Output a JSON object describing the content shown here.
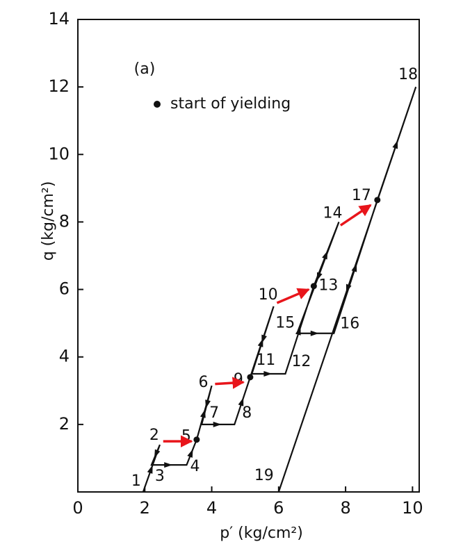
{
  "chart_data": {
    "type": "line",
    "annotation": "(a)",
    "xlabel": "p′ (kg/cm²)",
    "ylabel": "q (kg/cm²)",
    "xlim": [
      0,
      10.2
    ],
    "ylim": [
      0,
      14
    ],
    "xticks": [
      0,
      2,
      4,
      6,
      8,
      10
    ],
    "yticks": [
      2,
      4,
      6,
      8,
      10,
      12,
      14
    ],
    "legend": "upper left",
    "series": [
      {
        "color": "#111111",
        "x": [
          1.95,
          2.45,
          2.2,
          3.25,
          3.55,
          4.0,
          3.7,
          4.68,
          5.15,
          5.85,
          5.2,
          6.2,
          7.05,
          7.8,
          6.55,
          7.65,
          8.95,
          10.1,
          6.0
        ],
        "y": [
          0,
          1.4,
          0.8,
          0.8,
          1.55,
          3.15,
          2.0,
          2.0,
          3.4,
          5.5,
          3.5,
          3.5,
          6.1,
          8.0,
          4.7,
          4.7,
          8.65,
          12.0,
          0
        ],
        "point_labels": [
          "1",
          "2",
          "3",
          "4",
          "5",
          "6",
          "7",
          "8",
          "9",
          "10",
          "11",
          "12",
          "13",
          "14",
          "15",
          "16",
          "17",
          "18",
          "19"
        ]
      },
      {
        "type": "scatter",
        "name": "start of yielding",
        "color": "#111111",
        "x": [
          3.55,
          5.15,
          7.05,
          8.95
        ],
        "y": [
          1.55,
          3.4,
          6.1,
          8.65
        ]
      }
    ],
    "arrows": [
      {
        "color": "#e8151b",
        "x": [
          2.55,
          3.4
        ],
        "y": [
          1.5,
          1.5
        ]
      },
      {
        "color": "#e8151b",
        "x": [
          4.1,
          4.95
        ],
        "y": [
          3.2,
          3.25
        ]
      },
      {
        "color": "#e8151b",
        "x": [
          5.95,
          6.9
        ],
        "y": [
          5.6,
          6.0
        ]
      },
      {
        "color": "#e8151b",
        "x": [
          7.85,
          8.75
        ],
        "y": [
          7.9,
          8.5
        ]
      }
    ]
  }
}
